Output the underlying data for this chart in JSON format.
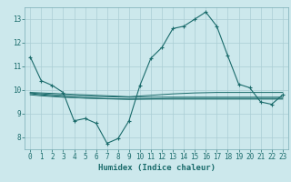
{
  "title": "",
  "xlabel": "Humidex (Indice chaleur)",
  "background_color": "#cce8ec",
  "line_color": "#1a6b6b",
  "grid_color": "#aacdd4",
  "x": [
    0,
    1,
    2,
    3,
    4,
    5,
    6,
    7,
    8,
    9,
    10,
    11,
    12,
    13,
    14,
    15,
    16,
    17,
    18,
    19,
    20,
    21,
    22,
    23
  ],
  "series1": [
    11.4,
    10.4,
    10.2,
    9.9,
    8.7,
    8.8,
    8.6,
    7.75,
    7.95,
    8.7,
    10.2,
    11.35,
    11.8,
    12.6,
    12.7,
    13.0,
    13.3,
    12.7,
    11.45,
    10.25,
    10.1,
    9.5,
    9.4,
    9.8
  ],
  "series2": [
    9.9,
    9.88,
    9.86,
    9.84,
    9.82,
    9.8,
    9.78,
    9.76,
    9.74,
    9.72,
    9.75,
    9.78,
    9.81,
    9.84,
    9.86,
    9.88,
    9.89,
    9.9,
    9.9,
    9.9,
    9.9,
    9.9,
    9.9,
    9.9
  ],
  "series3": [
    9.85,
    9.8,
    9.76,
    9.72,
    9.69,
    9.67,
    9.65,
    9.63,
    9.62,
    9.61,
    9.62,
    9.63,
    9.64,
    9.65,
    9.65,
    9.65,
    9.65,
    9.65,
    9.65,
    9.65,
    9.65,
    9.65,
    9.65,
    9.65
  ],
  "series4": [
    9.8,
    9.76,
    9.73,
    9.7,
    9.68,
    9.66,
    9.65,
    9.64,
    9.63,
    9.62,
    9.62,
    9.62,
    9.62,
    9.62,
    9.62,
    9.62,
    9.62,
    9.62,
    9.62,
    9.62,
    9.62,
    9.62,
    9.62,
    9.62
  ],
  "series5": [
    9.88,
    9.84,
    9.81,
    9.78,
    9.76,
    9.74,
    9.73,
    9.72,
    9.71,
    9.7,
    9.7,
    9.7,
    9.7,
    9.7,
    9.7,
    9.7,
    9.7,
    9.7,
    9.7,
    9.7,
    9.7,
    9.7,
    9.7,
    9.7
  ],
  "ylim": [
    7.5,
    13.5
  ],
  "yticks": [
    8,
    9,
    10,
    11,
    12,
    13
  ],
  "xticks": [
    0,
    1,
    2,
    3,
    4,
    5,
    6,
    7,
    8,
    9,
    10,
    11,
    12,
    13,
    14,
    15,
    16,
    17,
    18,
    19,
    20,
    21,
    22,
    23
  ],
  "tick_fontsize": 5.5,
  "label_fontsize": 6.5
}
